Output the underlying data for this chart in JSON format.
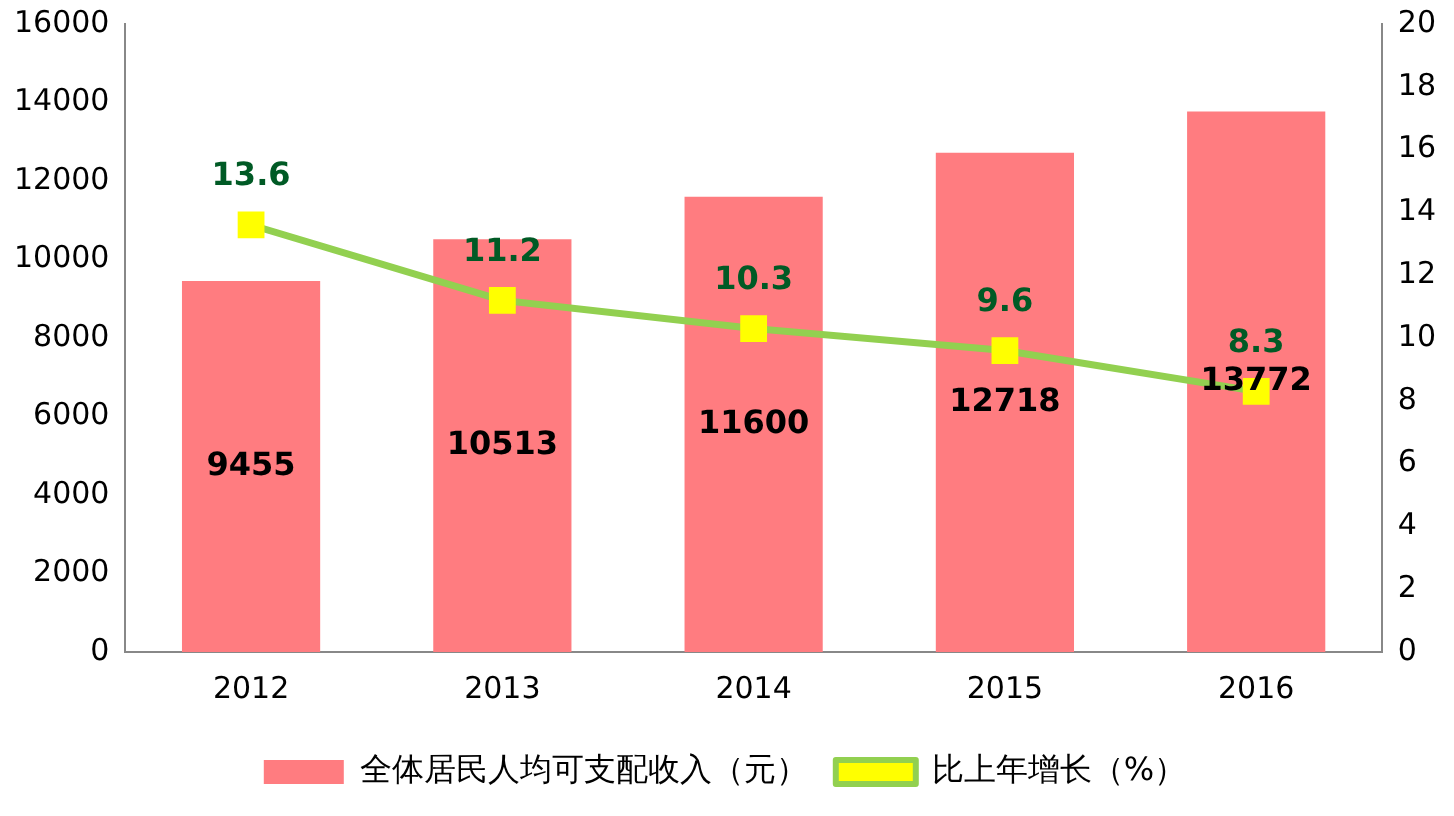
{
  "chart_data": {
    "type": "bar",
    "categories": [
      "2012",
      "2013",
      "2014",
      "2015",
      "2016"
    ],
    "series": [
      {
        "name": "全体居民人均可支配收入（元）",
        "color": "#ff7c80",
        "values": [
          9455,
          10513,
          11600,
          12718,
          13772
        ]
      },
      {
        "type": "line",
        "name": "比上年增长（%）",
        "color": "#92d050",
        "colors": [
          "#ffff00",
          "#ffff00",
          "#ffff00",
          "#ffff00",
          "#ffff00"
        ],
        "axis": "y2",
        "marker": "square",
        "values": [
          13.6,
          11.2,
          10.3,
          9.6,
          8.3
        ]
      }
    ],
    "ylim": [
      0,
      16000
    ],
    "yticks": [
      0,
      2000,
      4000,
      6000,
      8000,
      10000,
      12000,
      14000,
      16000
    ],
    "y2lim": [
      0,
      20
    ],
    "y2ticks": [
      0,
      2,
      4,
      6,
      8,
      10,
      12,
      14,
      16,
      18,
      20
    ],
    "grid": false,
    "legend": "bottom",
    "data_labels": true
  }
}
